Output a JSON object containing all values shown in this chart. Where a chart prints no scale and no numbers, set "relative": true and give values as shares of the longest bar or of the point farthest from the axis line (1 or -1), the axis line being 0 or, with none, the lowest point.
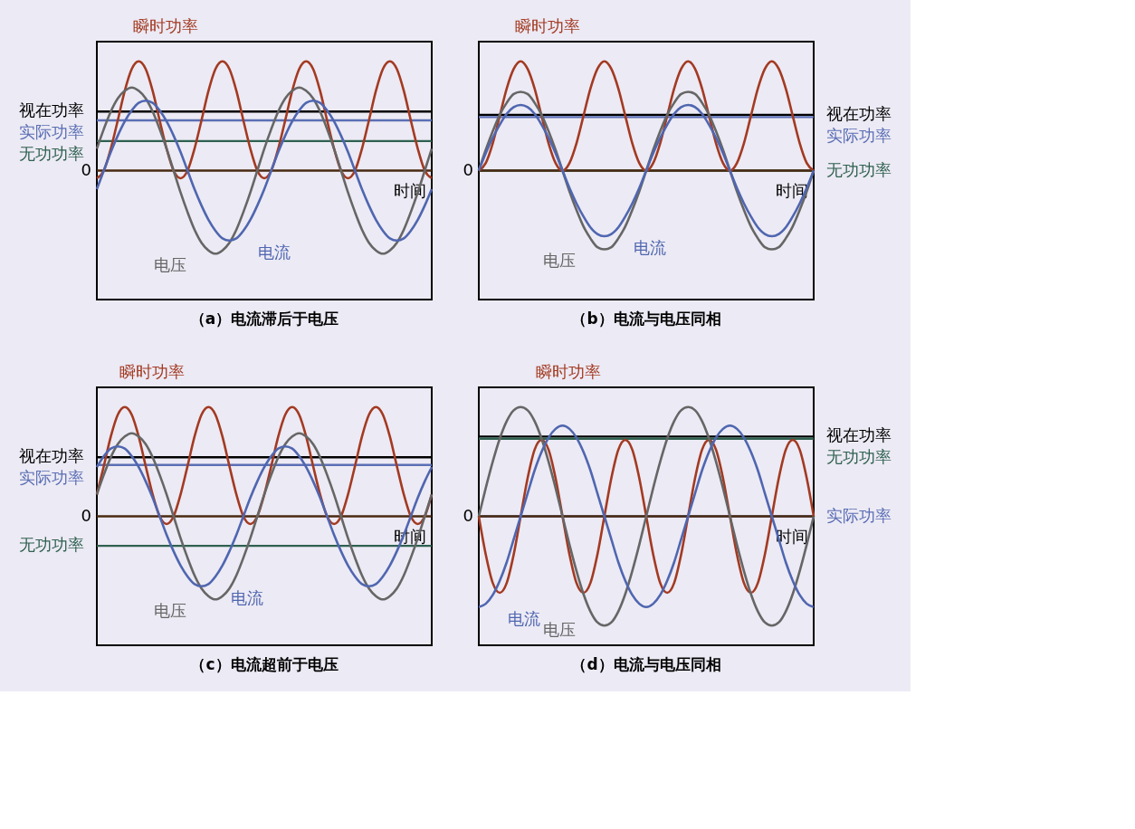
{
  "chart_data": [
    {
      "type": "line",
      "relative": true,
      "title": "（a）电流滞后于电压",
      "xlabel": "时间",
      "annotations": [
        "0"
      ],
      "categories": [
        null,
        null,
        null,
        null,
        null,
        null,
        null,
        null,
        null,
        null,
        null,
        null,
        null,
        null,
        null,
        null,
        null,
        null,
        null,
        null,
        null,
        null,
        null,
        null,
        null,
        null,
        null,
        null,
        null,
        null,
        null,
        null,
        null,
        null,
        null,
        null,
        null,
        null,
        null,
        null,
        null,
        null,
        null,
        null,
        null,
        null,
        null,
        null,
        null
      ],
      "series": [
        {
          "name": "瞬时功率",
          "color": "#a33a22",
          "values": [
            -0.07,
            0,
            0.2,
            0.46,
            0.73,
            0.93,
            1,
            0.93,
            0.73,
            0.46,
            0.2,
            0,
            -0.07,
            0,
            0.2,
            0.46,
            0.73,
            0.93,
            1,
            0.93,
            0.73,
            0.46,
            0.2,
            0,
            -0.07,
            0,
            0.2,
            0.46,
            0.73,
            0.93,
            1,
            0.93,
            0.73,
            0.46,
            0.2,
            0,
            -0.07,
            0,
            0.2,
            0.46,
            0.73,
            0.93,
            1,
            0.93,
            0.73,
            0.46,
            0.2,
            0,
            -0.07
          ]
        },
        {
          "name": "电压",
          "color": "#666666",
          "values": [
            0.2,
            0.38,
            0.54,
            0.66,
            0.73,
            0.76,
            0.73,
            0.66,
            0.54,
            0.38,
            0.2,
            0,
            -0.2,
            -0.38,
            -0.54,
            -0.66,
            -0.73,
            -0.76,
            -0.73,
            -0.66,
            -0.54,
            -0.38,
            -0.2,
            0,
            0.2,
            0.38,
            0.54,
            0.66,
            0.73,
            0.76,
            0.73,
            0.66,
            0.54,
            0.38,
            0.2,
            0,
            -0.2,
            -0.38,
            -0.54,
            -0.66,
            -0.73,
            -0.76,
            -0.73,
            -0.66,
            -0.54,
            -0.38,
            -0.2,
            0,
            0.2
          ]
        },
        {
          "name": "电流",
          "color": "#4f66b0",
          "values": [
            -0.17,
            0,
            0.17,
            0.32,
            0.45,
            0.55,
            0.62,
            0.64,
            0.62,
            0.55,
            0.45,
            0.32,
            0.17,
            0,
            -0.17,
            -0.32,
            -0.45,
            -0.55,
            -0.62,
            -0.64,
            -0.62,
            -0.55,
            -0.45,
            -0.32,
            -0.17,
            0,
            0.17,
            0.32,
            0.45,
            0.55,
            0.62,
            0.64,
            0.62,
            0.55,
            0.45,
            0.32,
            0.17,
            0,
            -0.17,
            -0.32,
            -0.45,
            -0.55,
            -0.62,
            -0.64,
            -0.62,
            -0.55,
            -0.45,
            -0.32,
            -0.17
          ]
        }
      ],
      "ref_lines": [
        {
          "axis": "y",
          "value": 0.54,
          "label": "视在功率",
          "color": "#000000"
        },
        {
          "axis": "y",
          "value": 0.46,
          "label": "实际功率",
          "color": "#5b6fb5"
        },
        {
          "axis": "y",
          "value": 0.27,
          "label": "无功功率",
          "color": "#2f6150"
        }
      ]
    },
    {
      "type": "line",
      "relative": true,
      "title": "（b）电流与电压同相",
      "xlabel": "时间",
      "annotations": [
        "0"
      ],
      "categories": [
        null,
        null,
        null,
        null,
        null,
        null,
        null,
        null,
        null,
        null,
        null,
        null,
        null,
        null,
        null,
        null,
        null,
        null,
        null,
        null,
        null,
        null,
        null,
        null,
        null,
        null,
        null,
        null,
        null,
        null,
        null,
        null,
        null,
        null,
        null,
        null,
        null,
        null,
        null,
        null,
        null,
        null,
        null,
        null,
        null,
        null,
        null,
        null,
        null
      ],
      "series": [
        {
          "name": "瞬时功率",
          "color": "#a33a22",
          "values": [
            0,
            0.07,
            0.25,
            0.5,
            0.75,
            0.93,
            1,
            0.93,
            0.75,
            0.5,
            0.25,
            0.07,
            0,
            0.07,
            0.25,
            0.5,
            0.75,
            0.93,
            1,
            0.93,
            0.75,
            0.5,
            0.25,
            0.07,
            0,
            0.07,
            0.25,
            0.5,
            0.75,
            0.93,
            1,
            0.93,
            0.75,
            0.5,
            0.25,
            0.07,
            0,
            0.07,
            0.25,
            0.5,
            0.75,
            0.93,
            1,
            0.93,
            0.75,
            0.5,
            0.25,
            0.07,
            0
          ]
        },
        {
          "name": "电压",
          "color": "#666666",
          "values": [
            0,
            0.19,
            0.36,
            0.51,
            0.62,
            0.7,
            0.72,
            0.7,
            0.62,
            0.51,
            0.36,
            0.19,
            0,
            -0.19,
            -0.36,
            -0.51,
            -0.62,
            -0.7,
            -0.72,
            -0.7,
            -0.62,
            -0.51,
            -0.36,
            -0.19,
            0,
            0.19,
            0.36,
            0.51,
            0.62,
            0.7,
            0.72,
            0.7,
            0.62,
            0.51,
            0.36,
            0.19,
            0,
            -0.19,
            -0.36,
            -0.51,
            -0.62,
            -0.7,
            -0.72,
            -0.7,
            -0.62,
            -0.51,
            -0.36,
            -0.19,
            0
          ]
        },
        {
          "name": "电流",
          "color": "#4f66b0",
          "values": [
            0,
            0.16,
            0.3,
            0.42,
            0.52,
            0.58,
            0.6,
            0.58,
            0.52,
            0.42,
            0.3,
            0.16,
            0,
            -0.16,
            -0.3,
            -0.42,
            -0.52,
            -0.58,
            -0.6,
            -0.58,
            -0.52,
            -0.42,
            -0.3,
            -0.16,
            0,
            0.16,
            0.3,
            0.42,
            0.52,
            0.58,
            0.6,
            0.58,
            0.52,
            0.42,
            0.3,
            0.16,
            0,
            -0.16,
            -0.3,
            -0.42,
            -0.52,
            -0.58,
            -0.6,
            -0.58,
            -0.52,
            -0.42,
            -0.3,
            -0.16,
            0
          ]
        }
      ],
      "ref_lines": [
        {
          "axis": "y",
          "value": 0.51,
          "label": "视在功率",
          "color": "#000000"
        },
        {
          "axis": "y",
          "value": 0.49,
          "label": "实际功率",
          "color": "#5b6fb5"
        },
        {
          "axis": "y",
          "value": 0,
          "label": "无功功率",
          "color": "#2f6150"
        }
      ]
    },
    {
      "type": "line",
      "relative": true,
      "title": "（c）电流超前于电压",
      "xlabel": "时间",
      "annotations": [
        "0"
      ],
      "categories": [
        null,
        null,
        null,
        null,
        null,
        null,
        null,
        null,
        null,
        null,
        null,
        null,
        null,
        null,
        null,
        null,
        null,
        null,
        null,
        null,
        null,
        null,
        null,
        null,
        null,
        null,
        null,
        null,
        null,
        null,
        null,
        null,
        null,
        null,
        null,
        null,
        null,
        null,
        null,
        null,
        null,
        null,
        null,
        null,
        null,
        null,
        null,
        null,
        null
      ],
      "series": [
        {
          "name": "瞬时功率",
          "color": "#a33a22",
          "values": [
            0.2,
            0.46,
            0.73,
            0.93,
            1,
            0.93,
            0.73,
            0.46,
            0.2,
            0,
            -0.07,
            0,
            0.2,
            0.46,
            0.73,
            0.93,
            1,
            0.93,
            0.73,
            0.46,
            0.2,
            0,
            -0.07,
            0,
            0.2,
            0.46,
            0.73,
            0.93,
            1,
            0.93,
            0.73,
            0.46,
            0.2,
            0,
            -0.07,
            0,
            0.2,
            0.46,
            0.73,
            0.93,
            1,
            0.93,
            0.73,
            0.46,
            0.2,
            0,
            -0.07,
            0,
            0.2
          ]
        },
        {
          "name": "电压",
          "color": "#666666",
          "values": [
            0.2,
            0.38,
            0.54,
            0.66,
            0.73,
            0.76,
            0.73,
            0.66,
            0.54,
            0.38,
            0.2,
            0,
            -0.2,
            -0.38,
            -0.54,
            -0.66,
            -0.73,
            -0.76,
            -0.73,
            -0.66,
            -0.54,
            -0.38,
            -0.2,
            0,
            0.2,
            0.38,
            0.54,
            0.66,
            0.73,
            0.76,
            0.73,
            0.66,
            0.54,
            0.38,
            0.2,
            0,
            -0.2,
            -0.38,
            -0.54,
            -0.66,
            -0.73,
            -0.76,
            -0.73,
            -0.66,
            -0.54,
            -0.38,
            -0.2,
            0,
            0.2
          ]
        },
        {
          "name": "电流",
          "color": "#4f66b0",
          "values": [
            0.45,
            0.55,
            0.62,
            0.64,
            0.62,
            0.55,
            0.45,
            0.32,
            0.17,
            0,
            -0.17,
            -0.32,
            -0.45,
            -0.55,
            -0.62,
            -0.64,
            -0.62,
            -0.55,
            -0.45,
            -0.32,
            -0.17,
            0,
            0.17,
            0.32,
            0.45,
            0.55,
            0.62,
            0.64,
            0.62,
            0.55,
            0.45,
            0.32,
            0.17,
            0,
            -0.17,
            -0.32,
            -0.45,
            -0.55,
            -0.62,
            -0.64,
            -0.62,
            -0.55,
            -0.45,
            -0.32,
            -0.17,
            0,
            0.17,
            0.32,
            0.45
          ]
        }
      ],
      "ref_lines": [
        {
          "axis": "y",
          "value": 0.54,
          "label": "视在功率",
          "color": "#000000"
        },
        {
          "axis": "y",
          "value": 0.47,
          "label": "实际功率",
          "color": "#5b6fb5"
        },
        {
          "axis": "y",
          "value": -0.27,
          "label": "无功功率",
          "color": "#2f6150"
        }
      ]
    },
    {
      "type": "line",
      "relative": true,
      "title": "（d）电流与电压同相",
      "xlabel": "时间",
      "annotations": [
        "0"
      ],
      "categories": [
        null,
        null,
        null,
        null,
        null,
        null,
        null,
        null,
        null,
        null,
        null,
        null,
        null,
        null,
        null,
        null,
        null,
        null,
        null,
        null,
        null,
        null,
        null,
        null,
        null,
        null,
        null,
        null,
        null,
        null,
        null,
        null,
        null,
        null,
        null,
        null,
        null,
        null,
        null,
        null,
        null,
        null,
        null,
        null,
        null,
        null,
        null,
        null,
        null
      ],
      "series": [
        {
          "name": "瞬时功率",
          "color": "#a33a22",
          "values": [
            0,
            -0.35,
            -0.61,
            -0.7,
            -0.61,
            -0.35,
            0,
            0.35,
            0.61,
            0.7,
            0.61,
            0.35,
            0,
            -0.35,
            -0.61,
            -0.7,
            -0.61,
            -0.35,
            0,
            0.35,
            0.61,
            0.7,
            0.61,
            0.35,
            0,
            -0.35,
            -0.61,
            -0.7,
            -0.61,
            -0.35,
            0,
            0.35,
            0.61,
            0.7,
            0.61,
            0.35,
            0,
            -0.35,
            -0.61,
            -0.7,
            -0.61,
            -0.35,
            0,
            0.35,
            0.61,
            0.7,
            0.61,
            0.35,
            0
          ]
        },
        {
          "name": "电压",
          "color": "#666666",
          "values": [
            0,
            0.26,
            0.5,
            0.71,
            0.87,
            0.97,
            1,
            0.97,
            0.87,
            0.71,
            0.5,
            0.26,
            0,
            -0.26,
            -0.5,
            -0.71,
            -0.87,
            -0.97,
            -1,
            -0.97,
            -0.87,
            -0.71,
            -0.5,
            -0.26,
            0,
            0.26,
            0.5,
            0.71,
            0.87,
            0.97,
            1,
            0.97,
            0.87,
            0.71,
            0.5,
            0.26,
            0,
            -0.26,
            -0.5,
            -0.71,
            -0.87,
            -0.97,
            -1,
            -0.97,
            -0.87,
            -0.71,
            -0.5,
            -0.26,
            0
          ]
        },
        {
          "name": "电流",
          "color": "#4f66b0",
          "values": [
            -0.83,
            -0.8,
            -0.72,
            -0.59,
            -0.42,
            -0.21,
            0,
            0.21,
            0.42,
            0.59,
            0.72,
            0.8,
            0.83,
            0.8,
            0.72,
            0.59,
            0.42,
            0.21,
            0,
            -0.21,
            -0.42,
            -0.59,
            -0.72,
            -0.8,
            -0.83,
            -0.8,
            -0.72,
            -0.59,
            -0.42,
            -0.21,
            0,
            0.21,
            0.42,
            0.59,
            0.72,
            0.8,
            0.83,
            0.8,
            0.72,
            0.59,
            0.42,
            0.21,
            0,
            -0.21,
            -0.42,
            -0.59,
            -0.72,
            -0.8,
            -0.83
          ]
        }
      ],
      "ref_lines": [
        {
          "axis": "y",
          "value": 0.73,
          "label": "视在功率",
          "color": "#000000"
        },
        {
          "axis": "y",
          "value": 0.71,
          "label": "无功功率",
          "color": "#2f6150"
        },
        {
          "axis": "y",
          "value": 0,
          "label": "实际功率",
          "color": "#5b6fb5"
        }
      ]
    }
  ]
}
